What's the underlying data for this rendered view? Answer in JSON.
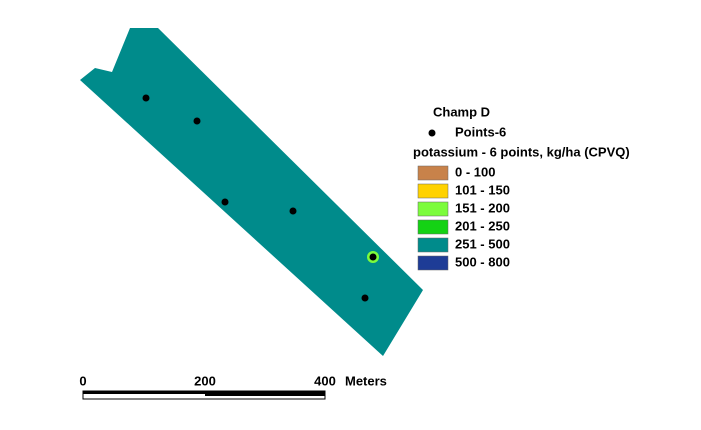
{
  "map": {
    "title": "Champ D",
    "points_layer": "Points-6",
    "surface_layer": "potassium - 6 points, kg/ha (CPVQ)",
    "classes": [
      {
        "label": "0 - 100",
        "color": "#c8824a"
      },
      {
        "label": "101 - 150",
        "color": "#ffd200"
      },
      {
        "label": "151 - 200",
        "color": "#7cfc3c"
      },
      {
        "label": "201 - 250",
        "color": "#14d214"
      },
      {
        "label": "251 - 500",
        "color": "#008b8b"
      },
      {
        "label": "500 - 800",
        "color": "#1e3c96"
      }
    ],
    "scale_bar": {
      "ticks": [
        0,
        200,
        400
      ],
      "unit": "Meters"
    }
  }
}
